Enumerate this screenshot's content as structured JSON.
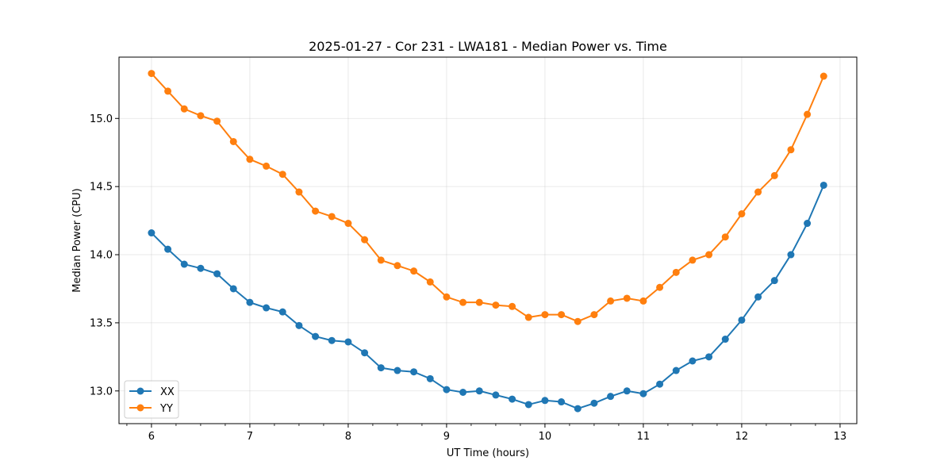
{
  "chart_data": {
    "type": "line",
    "title": "2025-01-27 - Cor 231 - LWA181 - Median Power vs. Time",
    "xlabel": "UT Time (hours)",
    "ylabel": "Median Power (CPU)",
    "xlim": [
      5.67,
      13.17
    ],
    "ylim": [
      12.76,
      15.45
    ],
    "xticks": [
      6,
      7,
      8,
      9,
      10,
      11,
      12,
      13
    ],
    "xtick_labels": [
      "6",
      "7",
      "8",
      "9",
      "10",
      "11",
      "12",
      "13"
    ],
    "xminor_step": 0.25,
    "yticks": [
      13.0,
      13.5,
      14.0,
      14.5,
      15.0
    ],
    "ytick_labels": [
      "13.0",
      "13.5",
      "14.0",
      "14.5",
      "15.0"
    ],
    "grid": true,
    "legend_position": "bottom-left",
    "x": [
      6.0,
      6.1667,
      6.3333,
      6.5,
      6.6667,
      6.8333,
      7.0,
      7.1667,
      7.3333,
      7.5,
      7.6667,
      7.8333,
      8.0,
      8.1667,
      8.3333,
      8.5,
      8.6667,
      8.8333,
      9.0,
      9.1667,
      9.3333,
      9.5,
      9.6667,
      9.8333,
      10.0,
      10.1667,
      10.3333,
      10.5,
      10.6667,
      10.8333,
      11.0,
      11.1667,
      11.3333,
      11.5,
      11.6667,
      11.8333,
      12.0,
      12.1667,
      12.3333,
      12.5,
      12.6667,
      12.8333
    ],
    "series": [
      {
        "name": "XX",
        "color": "#1f77b4",
        "values": [
          14.16,
          14.04,
          13.93,
          13.9,
          13.86,
          13.75,
          13.65,
          13.61,
          13.58,
          13.48,
          13.4,
          13.37,
          13.36,
          13.28,
          13.17,
          13.15,
          13.14,
          13.09,
          13.01,
          12.99,
          13.0,
          12.97,
          12.94,
          12.9,
          12.93,
          12.92,
          12.87,
          12.91,
          12.96,
          13.0,
          12.98,
          13.05,
          13.15,
          13.22,
          13.25,
          13.38,
          13.52,
          13.69,
          13.81,
          14.0,
          14.23,
          14.51
        ]
      },
      {
        "name": "YY",
        "color": "#ff7f0e",
        "values": [
          15.33,
          15.2,
          15.07,
          15.02,
          14.98,
          14.83,
          14.7,
          14.65,
          14.59,
          14.46,
          14.32,
          14.28,
          14.23,
          14.11,
          13.96,
          13.92,
          13.88,
          13.8,
          13.69,
          13.65,
          13.65,
          13.63,
          13.62,
          13.54,
          13.56,
          13.56,
          13.51,
          13.56,
          13.66,
          13.68,
          13.66,
          13.76,
          13.87,
          13.96,
          14.0,
          14.13,
          14.3,
          14.46,
          14.58,
          14.77,
          15.03,
          15.31
        ]
      }
    ]
  }
}
